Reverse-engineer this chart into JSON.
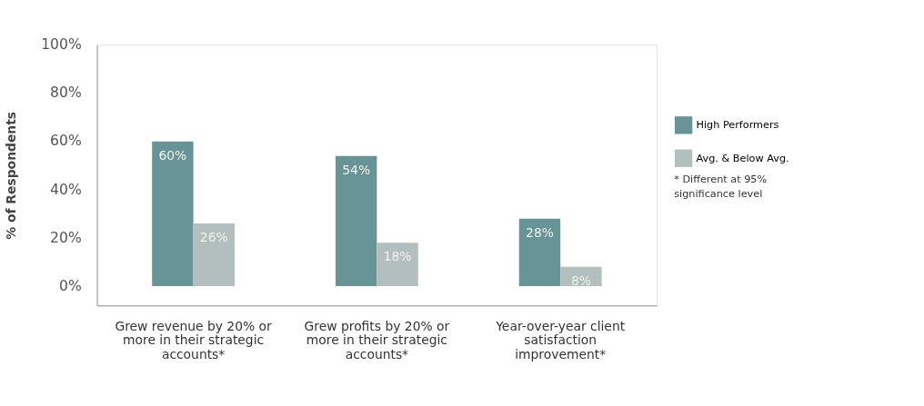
{
  "chart_data": {
    "type": "bar",
    "ylabel": "% of Respondents",
    "categories": [
      "Grew revenue by 20% or more in their strategic accounts*",
      "Grew profits by 20% or more in their strategic accounts*",
      "Year-over-year client satisfaction improvement*"
    ],
    "series": [
      {
        "name": "High Performers",
        "color": "#669497",
        "values": [
          60,
          54,
          28
        ],
        "value_labels": [
          "60%",
          "54%",
          "28%"
        ]
      },
      {
        "name": "Avg. & Below Avg.",
        "color": "#b3bfbf",
        "values": [
          26,
          18,
          8
        ],
        "value_labels": [
          "26%",
          "18%",
          "8%"
        ]
      }
    ],
    "ylim": [
      -8,
      100
    ],
    "yticks": [
      {
        "value": 0,
        "label": "0%"
      },
      {
        "value": 20,
        "label": "20%"
      },
      {
        "value": 40,
        "label": "40%"
      },
      {
        "value": 60,
        "label": "60%"
      },
      {
        "value": 80,
        "label": "80%"
      },
      {
        "value": 100,
        "label": "100%"
      }
    ],
    "grid": false,
    "legend": "right",
    "annotations": [
      "* Different at 95% significance level"
    ]
  }
}
